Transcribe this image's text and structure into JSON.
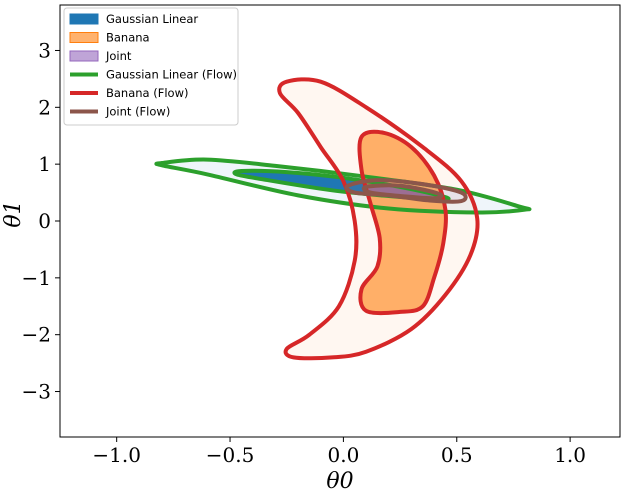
{
  "chart_data": {
    "type": "contour",
    "title": "",
    "xlabel": "θ0",
    "ylabel": "θ1",
    "xlim": [
      -1.25,
      1.22
    ],
    "ylim": [
      -3.8,
      3.8
    ],
    "xticks": [
      -1.0,
      -0.5,
      0.0,
      0.5,
      1.0
    ],
    "xtick_labels": [
      "−1.0",
      "−0.5",
      "0.0",
      "0.5",
      "1.0"
    ],
    "yticks": [
      -3,
      -2,
      -1,
      0,
      1,
      2,
      3
    ],
    "ytick_labels": [
      "−3",
      "−2",
      "−1",
      "0",
      "1",
      "2",
      "3"
    ],
    "legend_position": "top-left",
    "grid": false,
    "series": [
      {
        "name": "Gaussian Linear",
        "kind": "filled",
        "color": "#1f77b4",
        "levels": [
          {
            "alpha": 0.07,
            "points": [
              [
                -0.8,
                1.02
              ],
              [
                -0.6,
                1.08
              ],
              [
                -0.3,
                0.97
              ],
              [
                0.1,
                0.78
              ],
              [
                0.5,
                0.55
              ],
              [
                0.78,
                0.25
              ],
              [
                0.8,
                0.2
              ],
              [
                0.6,
                0.15
              ],
              [
                0.2,
                0.22
              ],
              [
                -0.2,
                0.45
              ],
              [
                -0.6,
                0.82
              ],
              [
                -0.8,
                0.98
              ]
            ]
          },
          {
            "alpha": 1.0,
            "points": [
              [
                -0.45,
                0.88
              ],
              [
                -0.25,
                0.86
              ],
              [
                0.0,
                0.76
              ],
              [
                0.25,
                0.6
              ],
              [
                0.45,
                0.42
              ],
              [
                0.42,
                0.38
              ],
              [
                0.2,
                0.44
              ],
              [
                -0.05,
                0.54
              ],
              [
                -0.35,
                0.73
              ],
              [
                -0.47,
                0.82
              ]
            ]
          }
        ]
      },
      {
        "name": "Banana",
        "kind": "filled",
        "color": "#ff7f0e",
        "levels": [
          {
            "alpha": 0.06,
            "points": [
              [
                -0.25,
                2.45
              ],
              [
                -0.1,
                2.45
              ],
              [
                0.1,
                2.0
              ],
              [
                0.35,
                1.3
              ],
              [
                0.52,
                0.7
              ],
              [
                0.59,
                0.05
              ],
              [
                0.56,
                -0.6
              ],
              [
                0.45,
                -1.3
              ],
              [
                0.3,
                -1.9
              ],
              [
                0.1,
                -2.3
              ],
              [
                -0.05,
                -2.4
              ],
              [
                -0.22,
                -2.4
              ],
              [
                -0.25,
                -2.25
              ],
              [
                -0.15,
                -2.0
              ],
              [
                -0.02,
                -1.5
              ],
              [
                0.05,
                -0.7
              ],
              [
                0.05,
                0.0
              ],
              [
                0.0,
                0.7
              ],
              [
                -0.1,
                1.3
              ],
              [
                -0.2,
                1.9
              ],
              [
                -0.28,
                2.25
              ]
            ]
          },
          {
            "alpha": 0.6,
            "points": [
              [
                0.08,
                1.48
              ],
              [
                0.18,
                1.55
              ],
              [
                0.3,
                1.3
              ],
              [
                0.4,
                0.8
              ],
              [
                0.45,
                0.2
              ],
              [
                0.44,
                -0.4
              ],
              [
                0.4,
                -1.0
              ],
              [
                0.35,
                -1.5
              ],
              [
                0.25,
                -1.6
              ],
              [
                0.1,
                -1.58
              ],
              [
                0.08,
                -1.2
              ],
              [
                0.15,
                -0.8
              ],
              [
                0.16,
                -0.3
              ],
              [
                0.12,
                0.3
              ],
              [
                0.08,
                0.9
              ]
            ]
          }
        ]
      },
      {
        "name": "Joint",
        "kind": "filled",
        "color": "#9467bd",
        "levels": [
          {
            "alpha": 0.08,
            "points": [
              [
                0.02,
                0.62
              ],
              [
                0.15,
                0.72
              ],
              [
                0.35,
                0.65
              ],
              [
                0.52,
                0.5
              ],
              [
                0.52,
                0.35
              ],
              [
                0.38,
                0.36
              ],
              [
                0.2,
                0.45
              ],
              [
                0.05,
                0.5
              ]
            ]
          },
          {
            "alpha": 0.6,
            "points": [
              [
                0.1,
                0.6
              ],
              [
                0.25,
                0.62
              ],
              [
                0.42,
                0.48
              ],
              [
                0.4,
                0.4
              ],
              [
                0.25,
                0.44
              ],
              [
                0.12,
                0.5
              ]
            ]
          }
        ]
      },
      {
        "name": "Gaussian Linear (Flow)",
        "kind": "line",
        "color": "#2ca02c",
        "levels": [
          {
            "points": [
              [
                -0.8,
                1.02
              ],
              [
                -0.6,
                1.08
              ],
              [
                -0.3,
                0.97
              ],
              [
                0.1,
                0.78
              ],
              [
                0.5,
                0.55
              ],
              [
                0.78,
                0.25
              ],
              [
                0.8,
                0.2
              ],
              [
                0.6,
                0.15
              ],
              [
                0.2,
                0.22
              ],
              [
                -0.2,
                0.45
              ],
              [
                -0.6,
                0.82
              ],
              [
                -0.8,
                0.98
              ]
            ]
          },
          {
            "points": [
              [
                -0.45,
                0.88
              ],
              [
                -0.25,
                0.86
              ],
              [
                0.0,
                0.76
              ],
              [
                0.25,
                0.6
              ],
              [
                0.45,
                0.42
              ],
              [
                0.42,
                0.38
              ],
              [
                0.2,
                0.44
              ],
              [
                -0.05,
                0.54
              ],
              [
                -0.35,
                0.73
              ],
              [
                -0.47,
                0.82
              ]
            ]
          }
        ]
      },
      {
        "name": "Banana (Flow)",
        "kind": "line",
        "color": "#d62728",
        "levels": [
          {
            "points": [
              [
                -0.25,
                2.45
              ],
              [
                -0.1,
                2.45
              ],
              [
                0.1,
                2.0
              ],
              [
                0.35,
                1.3
              ],
              [
                0.52,
                0.7
              ],
              [
                0.59,
                0.05
              ],
              [
                0.56,
                -0.6
              ],
              [
                0.45,
                -1.3
              ],
              [
                0.3,
                -1.9
              ],
              [
                0.1,
                -2.3
              ],
              [
                -0.05,
                -2.4
              ],
              [
                -0.22,
                -2.4
              ],
              [
                -0.25,
                -2.25
              ],
              [
                -0.15,
                -2.0
              ],
              [
                -0.02,
                -1.5
              ],
              [
                0.05,
                -0.7
              ],
              [
                0.05,
                0.0
              ],
              [
                0.0,
                0.7
              ],
              [
                -0.1,
                1.3
              ],
              [
                -0.2,
                1.9
              ],
              [
                -0.28,
                2.25
              ]
            ]
          },
          {
            "points": [
              [
                0.08,
                1.48
              ],
              [
                0.18,
                1.55
              ],
              [
                0.3,
                1.3
              ],
              [
                0.4,
                0.8
              ],
              [
                0.45,
                0.2
              ],
              [
                0.44,
                -0.4
              ],
              [
                0.4,
                -1.0
              ],
              [
                0.35,
                -1.5
              ],
              [
                0.25,
                -1.6
              ],
              [
                0.1,
                -1.58
              ],
              [
                0.08,
                -1.2
              ],
              [
                0.15,
                -0.8
              ],
              [
                0.16,
                -0.3
              ],
              [
                0.12,
                0.3
              ],
              [
                0.08,
                0.9
              ]
            ]
          }
        ]
      },
      {
        "name": "Joint (Flow)",
        "kind": "line",
        "color": "#8c564b",
        "levels": [
          {
            "points": [
              [
                0.02,
                0.62
              ],
              [
                0.15,
                0.72
              ],
              [
                0.35,
                0.65
              ],
              [
                0.52,
                0.5
              ],
              [
                0.52,
                0.35
              ],
              [
                0.38,
                0.36
              ],
              [
                0.2,
                0.45
              ],
              [
                0.05,
                0.5
              ]
            ]
          },
          {
            "points": [
              [
                0.1,
                0.6
              ],
              [
                0.25,
                0.62
              ],
              [
                0.42,
                0.48
              ],
              [
                0.4,
                0.4
              ],
              [
                0.25,
                0.44
              ],
              [
                0.12,
                0.5
              ]
            ]
          }
        ]
      }
    ]
  }
}
